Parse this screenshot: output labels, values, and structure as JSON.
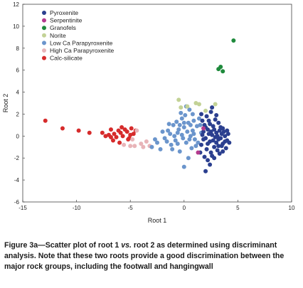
{
  "caption": {
    "prefix": "Figure 3a—Scatter plot of root 1 ",
    "italic": "vs.",
    "rest": " root 2 as determined using discriminant analysis. Note that these two roots provide a good discrimination between the major rock groups, including the footwall and hangingwall"
  },
  "chart_data": {
    "type": "scatter",
    "title": "",
    "xlabel": "Root 1",
    "ylabel": "Root 2",
    "xlim": [
      -15,
      10
    ],
    "ylim": [
      -6,
      12
    ],
    "xticks": [
      -15,
      -10,
      -5,
      0,
      5,
      10
    ],
    "yticks": [
      -6,
      -4,
      -2,
      0,
      2,
      4,
      6,
      8,
      10,
      12
    ],
    "grid": false,
    "legend_position": "top-left",
    "series": [
      {
        "name": "Pyroxenite",
        "color": "#2b3f8f",
        "points": [
          [
            1.8,
            0.4
          ],
          [
            2.0,
            -0.2
          ],
          [
            2.2,
            0.6
          ],
          [
            2.4,
            -0.5
          ],
          [
            2.6,
            0.1
          ],
          [
            2.8,
            -1.0
          ],
          [
            3.0,
            0.3
          ],
          [
            3.2,
            -0.3
          ],
          [
            3.4,
            0.8
          ],
          [
            3.6,
            -0.7
          ],
          [
            3.8,
            0.0
          ],
          [
            4.0,
            -0.4
          ],
          [
            1.6,
            -0.8
          ],
          [
            1.9,
            1.0
          ],
          [
            2.1,
            -1.2
          ],
          [
            2.3,
            1.4
          ],
          [
            2.5,
            -1.5
          ],
          [
            2.7,
            0.9
          ],
          [
            2.9,
            -0.1
          ],
          [
            3.1,
            -1.3
          ],
          [
            3.3,
            0.5
          ],
          [
            3.5,
            -0.9
          ],
          [
            3.7,
            0.4
          ],
          [
            3.9,
            -1.1
          ],
          [
            4.1,
            0.2
          ],
          [
            1.7,
            0.1
          ],
          [
            2.0,
            0.8
          ],
          [
            2.2,
            -0.7
          ],
          [
            2.4,
            1.1
          ],
          [
            2.6,
            -1.8
          ],
          [
            2.8,
            0.6
          ],
          [
            3.0,
            -0.6
          ],
          [
            3.2,
            1.2
          ],
          [
            3.4,
            -0.2
          ],
          [
            3.6,
            0.7
          ],
          [
            3.8,
            -0.5
          ],
          [
            4.0,
            0.5
          ],
          [
            1.5,
            -1.5
          ],
          [
            2.1,
            1.8
          ],
          [
            2.5,
            2.2
          ],
          [
            1.8,
            -0.3
          ],
          [
            2.3,
            0.2
          ],
          [
            2.7,
            -0.4
          ],
          [
            3.1,
            0.0
          ],
          [
            3.5,
            0.2
          ],
          [
            2.9,
            1.5
          ],
          [
            3.3,
            -1.6
          ],
          [
            2.2,
            -2.2
          ],
          [
            1.9,
            -1.9
          ],
          [
            2.4,
            -2.6
          ],
          [
            2.0,
            -3.2
          ],
          [
            3.6,
            -1.4
          ],
          [
            4.2,
            -0.6
          ],
          [
            2.6,
            2.6
          ],
          [
            3.0,
            1.9
          ],
          [
            1.6,
            2.0
          ],
          [
            2.8,
            -2.0
          ],
          [
            3.2,
            -0.9
          ],
          [
            1.7,
            1.4
          ],
          [
            2.5,
            0.4
          ]
        ]
      },
      {
        "name": "Serpentinite",
        "color": "#b43a8e",
        "points": [
          [
            1.3,
            -1.5
          ],
          [
            1.8,
            0.7
          ]
        ]
      },
      {
        "name": "Granofels",
        "color": "#1f8a3c",
        "points": [
          [
            4.6,
            8.7
          ],
          [
            3.2,
            6.1
          ],
          [
            3.4,
            6.3
          ],
          [
            3.6,
            5.9
          ]
        ]
      },
      {
        "name": "Norite",
        "color": "#c3d296",
        "points": [
          [
            -0.5,
            3.3
          ],
          [
            1.4,
            2.9
          ],
          [
            2.9,
            2.9
          ],
          [
            2.0,
            2.3
          ],
          [
            -0.3,
            2.6
          ],
          [
            1.1,
            3.0
          ],
          [
            0.3,
            2.7
          ]
        ]
      },
      {
        "name": "Low Ca Parapyroxenite",
        "color": "#6b95cc",
        "points": [
          [
            -3.0,
            -1.0
          ],
          [
            -2.5,
            -0.6
          ],
          [
            -2.2,
            -1.2
          ],
          [
            -1.8,
            -0.2
          ],
          [
            -1.5,
            0.5
          ],
          [
            -1.2,
            -0.8
          ],
          [
            -1.0,
            1.0
          ],
          [
            -0.8,
            -0.4
          ],
          [
            -0.6,
            0.3
          ],
          [
            -0.4,
            -1.4
          ],
          [
            -0.2,
            1.6
          ],
          [
            0.0,
            0.8
          ],
          [
            0.2,
            -0.6
          ],
          [
            0.4,
            1.2
          ],
          [
            0.6,
            0.0
          ],
          [
            0.8,
            2.0
          ],
          [
            1.0,
            -0.3
          ],
          [
            1.2,
            0.9
          ],
          [
            1.4,
            1.6
          ],
          [
            1.6,
            0.3
          ],
          [
            -0.3,
            2.1
          ],
          [
            0.1,
            1.9
          ],
          [
            0.5,
            2.4
          ],
          [
            -0.1,
            -0.2
          ],
          [
            0.3,
            0.4
          ],
          [
            0.7,
            -1.1
          ],
          [
            0.9,
            1.4
          ],
          [
            1.1,
            -0.9
          ],
          [
            -0.7,
            1.3
          ],
          [
            -1.3,
            0.2
          ],
          [
            -1.6,
            -0.5
          ],
          [
            -2.0,
            0.4
          ],
          [
            0.0,
            -2.8
          ],
          [
            0.4,
            -2.0
          ],
          [
            -0.5,
            0.6
          ],
          [
            0.6,
            1.0
          ],
          [
            -0.9,
            0.0
          ],
          [
            0.2,
            2.7
          ],
          [
            -0.2,
            0.1
          ],
          [
            0.8,
            0.5
          ],
          [
            -1.1,
            -1.2
          ],
          [
            1.3,
            -0.6
          ],
          [
            -0.6,
            -0.7
          ],
          [
            0.5,
            -0.3
          ],
          [
            -0.4,
            1.0
          ],
          [
            1.5,
            1.0
          ],
          [
            0.9,
            0.2
          ],
          [
            -1.4,
            1.1
          ],
          [
            -2.7,
            -0.3
          ],
          [
            0.0,
            1.2
          ]
        ]
      },
      {
        "name": "High Ca Parapyroxenite",
        "color": "#e8b4b8",
        "points": [
          [
            -4.6,
            -0.9
          ],
          [
            -4.0,
            -0.7
          ],
          [
            -3.8,
            -1.0
          ],
          [
            -3.2,
            -0.9
          ],
          [
            -4.4,
            0.5
          ],
          [
            -5.6,
            -0.8
          ],
          [
            -3.5,
            -0.5
          ],
          [
            -4.8,
            -0.3
          ],
          [
            -5.0,
            -0.9
          ]
        ]
      },
      {
        "name": "Calc-silicate",
        "color": "#d62b2b",
        "points": [
          [
            -12.9,
            1.4
          ],
          [
            -11.3,
            0.7
          ],
          [
            -9.8,
            0.5
          ],
          [
            -8.8,
            0.3
          ],
          [
            -7.6,
            0.3
          ],
          [
            -7.0,
            0.1
          ],
          [
            -6.8,
            0.6
          ],
          [
            -6.5,
            0.2
          ],
          [
            -6.3,
            -0.1
          ],
          [
            -6.1,
            0.5
          ],
          [
            -5.9,
            0.3
          ],
          [
            -5.7,
            0.0
          ],
          [
            -5.5,
            0.6
          ],
          [
            -5.3,
            0.4
          ],
          [
            -5.1,
            -0.2
          ],
          [
            -4.9,
            0.7
          ],
          [
            -4.7,
            0.2
          ],
          [
            -6.6,
            -0.4
          ],
          [
            -6.0,
            -0.6
          ],
          [
            -5.2,
            -0.3
          ],
          [
            -4.5,
            0.5
          ],
          [
            -6.8,
            -0.1
          ],
          [
            -5.8,
            0.8
          ],
          [
            -7.3,
            0.0
          ],
          [
            -5.0,
            0.1
          ]
        ]
      }
    ]
  }
}
